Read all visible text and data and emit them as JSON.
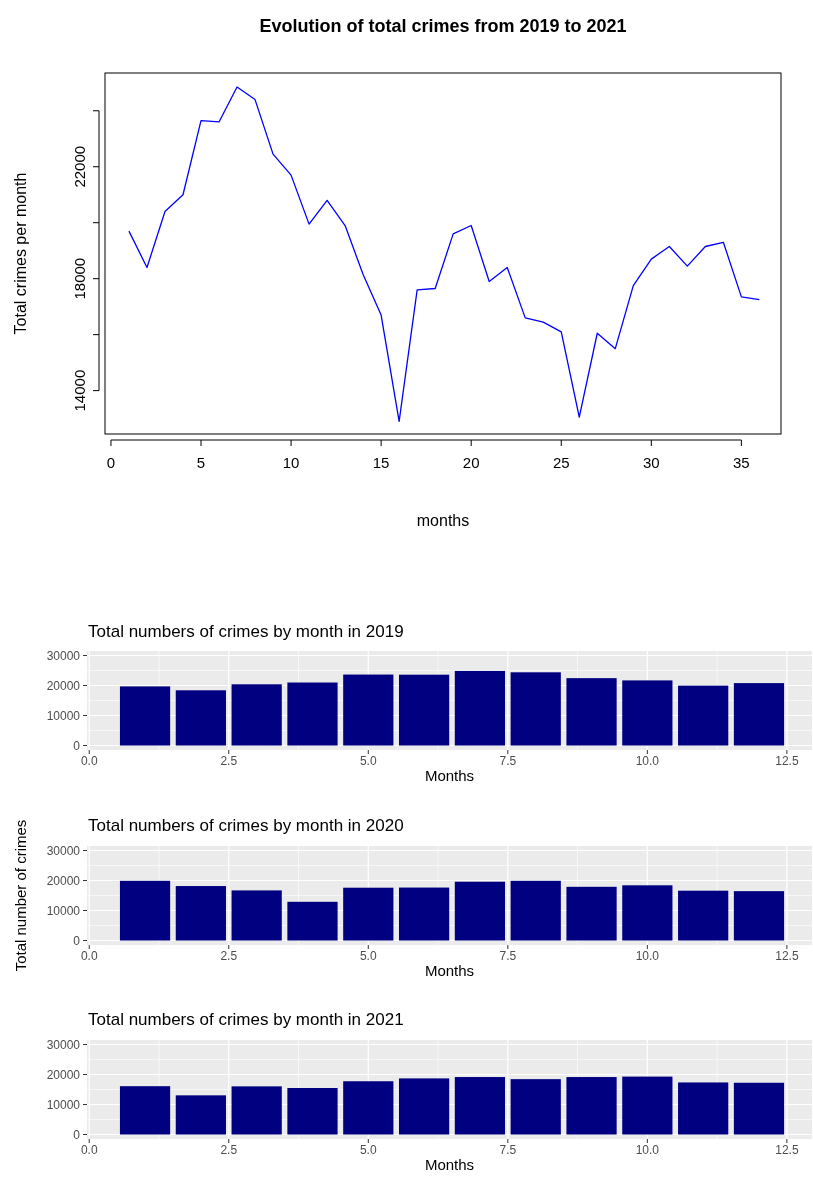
{
  "chart_data": [
    {
      "type": "line",
      "title": "Evolution of total crimes from 2019 to 2021",
      "xlabel": "months",
      "ylabel": "Total crimes per month",
      "x": [
        1,
        2,
        3,
        4,
        5,
        6,
        7,
        8,
        9,
        10,
        11,
        12,
        13,
        14,
        15,
        16,
        17,
        18,
        19,
        20,
        21,
        22,
        23,
        24,
        25,
        26,
        27,
        28,
        29,
        30,
        31,
        32,
        33,
        34,
        35,
        36
      ],
      "series": [
        {
          "color": "#0000ff",
          "values": [
            19700,
            18400,
            20400,
            21000,
            23650,
            23600,
            24850,
            24400,
            22450,
            21700,
            19950,
            20800,
            19900,
            18150,
            16700,
            12900,
            17600,
            17650,
            19600,
            19900,
            17900,
            18400,
            16600,
            16450,
            16100,
            13050,
            16050,
            15500,
            17750,
            18700,
            19150,
            18450,
            19150,
            19300,
            17350,
            17250
          ]
        }
      ],
      "xlim": [
        -0.33,
        37.2
      ],
      "xticks": [
        0,
        5,
        10,
        15,
        20,
        25,
        30,
        35
      ],
      "ylim": [
        12450,
        25350
      ],
      "yticks": [
        14000,
        {
          "value": 16000,
          "label": null
        },
        18000,
        {
          "value": 20000,
          "label": null
        },
        22000,
        {
          "value": 24000,
          "label": null
        }
      ],
      "grid": false,
      "marker": "none",
      "line_style": "solid"
    },
    {
      "type": "bar",
      "title": "Total numbers of crimes by month in 2019",
      "xlabel": "Months",
      "x": [
        1,
        2,
        3,
        4,
        5,
        6,
        7,
        8,
        9,
        10,
        11,
        12
      ],
      "series": [
        {
          "color": "#000080",
          "values": [
            19700,
            18400,
            20400,
            21000,
            23650,
            23600,
            24850,
            24400,
            22450,
            21700,
            19950,
            20800
          ]
        }
      ],
      "xlim": [
        -0.04,
        12.95
      ],
      "xticks": [
        {
          "value": 0,
          "label": "0.0"
        },
        {
          "value": 2.5,
          "label": "2.5"
        },
        {
          "value": 5,
          "label": "5.0"
        },
        {
          "value": 7.5,
          "label": "7.5"
        },
        {
          "value": 10,
          "label": "10.0"
        },
        {
          "value": 12.5,
          "label": "12.5"
        }
      ],
      "ylim": [
        -1500,
        31500
      ],
      "yticks": [
        0,
        10000,
        20000,
        30000
      ],
      "grid": true
    },
    {
      "type": "bar",
      "title": "Total numbers of crimes by month in 2020",
      "xlabel": "Months",
      "ylabel": "Total number of crimes",
      "x": [
        1,
        2,
        3,
        4,
        5,
        6,
        7,
        8,
        9,
        10,
        11,
        12
      ],
      "series": [
        {
          "color": "#000080",
          "values": [
            19900,
            18150,
            16700,
            12900,
            17600,
            17650,
            19600,
            19900,
            17900,
            18400,
            16600,
            16450
          ]
        }
      ],
      "xlim": [
        -0.04,
        12.95
      ],
      "xticks": [
        {
          "value": 0,
          "label": "0.0"
        },
        {
          "value": 2.5,
          "label": "2.5"
        },
        {
          "value": 5,
          "label": "5.0"
        },
        {
          "value": 7.5,
          "label": "7.5"
        },
        {
          "value": 10,
          "label": "10.0"
        },
        {
          "value": 12.5,
          "label": "12.5"
        }
      ],
      "ylim": [
        -1500,
        31500
      ],
      "yticks": [
        0,
        10000,
        20000,
        30000
      ],
      "grid": true
    },
    {
      "type": "bar",
      "title": "Total numbers of crimes by month in 2021",
      "xlabel": "Months",
      "x": [
        1,
        2,
        3,
        4,
        5,
        6,
        7,
        8,
        9,
        10,
        11,
        12
      ],
      "series": [
        {
          "color": "#000080",
          "values": [
            16100,
            13050,
            16050,
            15500,
            17750,
            18700,
            19150,
            18450,
            19150,
            19300,
            17350,
            17250
          ]
        }
      ],
      "xlim": [
        -0.04,
        12.95
      ],
      "xticks": [
        {
          "value": 0,
          "label": "0.0"
        },
        {
          "value": 2.5,
          "label": "2.5"
        },
        {
          "value": 5,
          "label": "5.0"
        },
        {
          "value": 7.5,
          "label": "7.5"
        },
        {
          "value": 10,
          "label": "10.0"
        },
        {
          "value": 12.5,
          "label": "12.5"
        }
      ],
      "ylim": [
        -1500,
        31500
      ],
      "yticks": [
        0,
        10000,
        20000,
        30000
      ],
      "grid": true
    }
  ]
}
